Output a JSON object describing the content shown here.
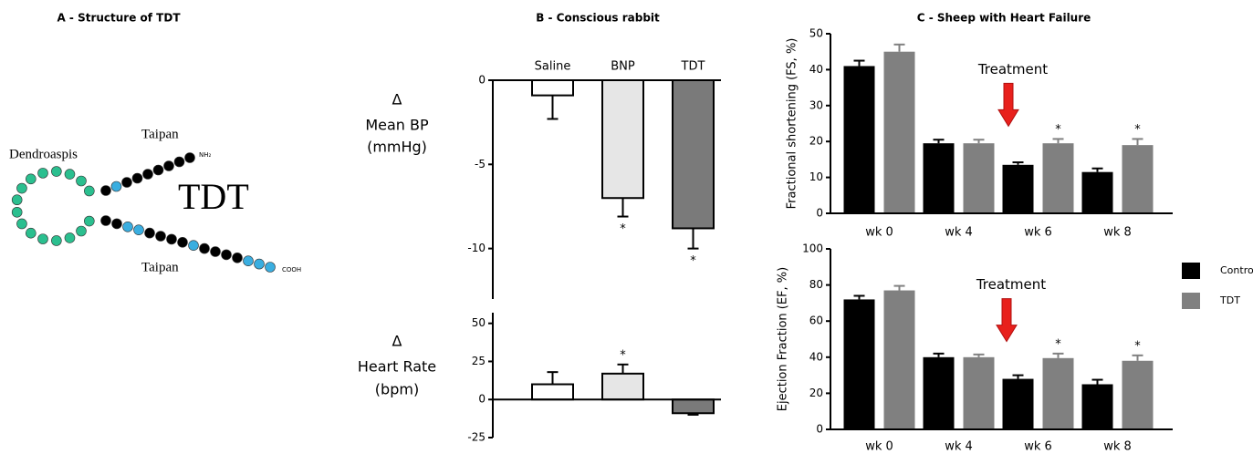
{
  "panel_a": {
    "title": "A - Structure of TDT",
    "labels": {
      "left": "Dendroaspis",
      "top": "Taipan",
      "bottom": "Taipan",
      "center": "TDT",
      "n_term": "NH₂",
      "c_term": "COOH"
    }
  },
  "chart_data": [
    {
      "type": "bar",
      "title": "B - Conscious rabbit",
      "ylabel_lines": [
        "Δ",
        "Mean BP",
        "(mmHg)"
      ],
      "categories": [
        "Saline",
        "BNP",
        "TDT"
      ],
      "series": [
        {
          "colors": [
            "#ffffff",
            "#e6e6e6",
            "#7a7a7a"
          ],
          "values": [
            -0.9,
            -7,
            -8.8
          ],
          "errors": [
            1.4,
            1.1,
            1.2
          ],
          "labels": [
            null,
            "*",
            "*"
          ]
        }
      ],
      "ylim": [
        -13,
        0
      ],
      "yticks": [
        0,
        -5,
        -10
      ]
    },
    {
      "type": "bar",
      "ylabel_lines": [
        "Δ",
        "Heart Rate",
        "(bpm)"
      ],
      "categories": [
        null,
        null,
        null
      ],
      "series": [
        {
          "colors": [
            "#ffffff",
            "#e6e6e6",
            "#7a7a7a"
          ],
          "values": [
            10,
            17,
            -9
          ],
          "errors": [
            8,
            6,
            1
          ],
          "labels": [
            null,
            "*",
            null
          ]
        }
      ],
      "ylim": [
        -25,
        57
      ],
      "yticks": [
        50,
        25,
        0,
        -25
      ]
    },
    {
      "type": "bar",
      "title": "C - Sheep with Heart Failure",
      "ylabel": "Fractional shortening (FS, %)",
      "annotation": "Treatment",
      "categories": [
        "wk 0",
        "wk 4",
        "wk 6",
        "wk 8"
      ],
      "series": [
        {
          "color": "#000000",
          "values": [
            41,
            19.5,
            13.5,
            11.5
          ],
          "errors": [
            1.5,
            1,
            0.7,
            1
          ],
          "labels": [
            null,
            null,
            null,
            null
          ]
        },
        {
          "color": "#808080",
          "values": [
            45,
            19.5,
            19.5,
            19
          ],
          "errors": [
            2,
            1,
            1.2,
            1.7
          ],
          "labels": [
            null,
            null,
            "*",
            "*"
          ]
        }
      ],
      "ylim": [
        0,
        50
      ],
      "yticks": [
        0,
        10,
        20,
        30,
        40,
        50
      ]
    },
    {
      "type": "bar",
      "ylabel": "Ejection Fraction (EF, %)",
      "annotation": "Treatment",
      "legend": "right",
      "categories": [
        "wk 0",
        "wk 4",
        "wk 6",
        "wk 8"
      ],
      "series": [
        {
          "name": "Control",
          "color": "#000000",
          "values": [
            72,
            40,
            28,
            25
          ],
          "errors": [
            2,
            2,
            2,
            2.5
          ],
          "labels": [
            null,
            null,
            null,
            null
          ]
        },
        {
          "name": "TDT",
          "color": "#808080",
          "values": [
            77,
            40,
            39.5,
            38
          ],
          "errors": [
            2.5,
            1.5,
            2.5,
            3
          ],
          "labels": [
            null,
            null,
            "*",
            "*"
          ]
        }
      ],
      "ylim": [
        0,
        100
      ],
      "yticks": [
        0,
        20,
        40,
        60,
        80,
        100
      ]
    }
  ]
}
